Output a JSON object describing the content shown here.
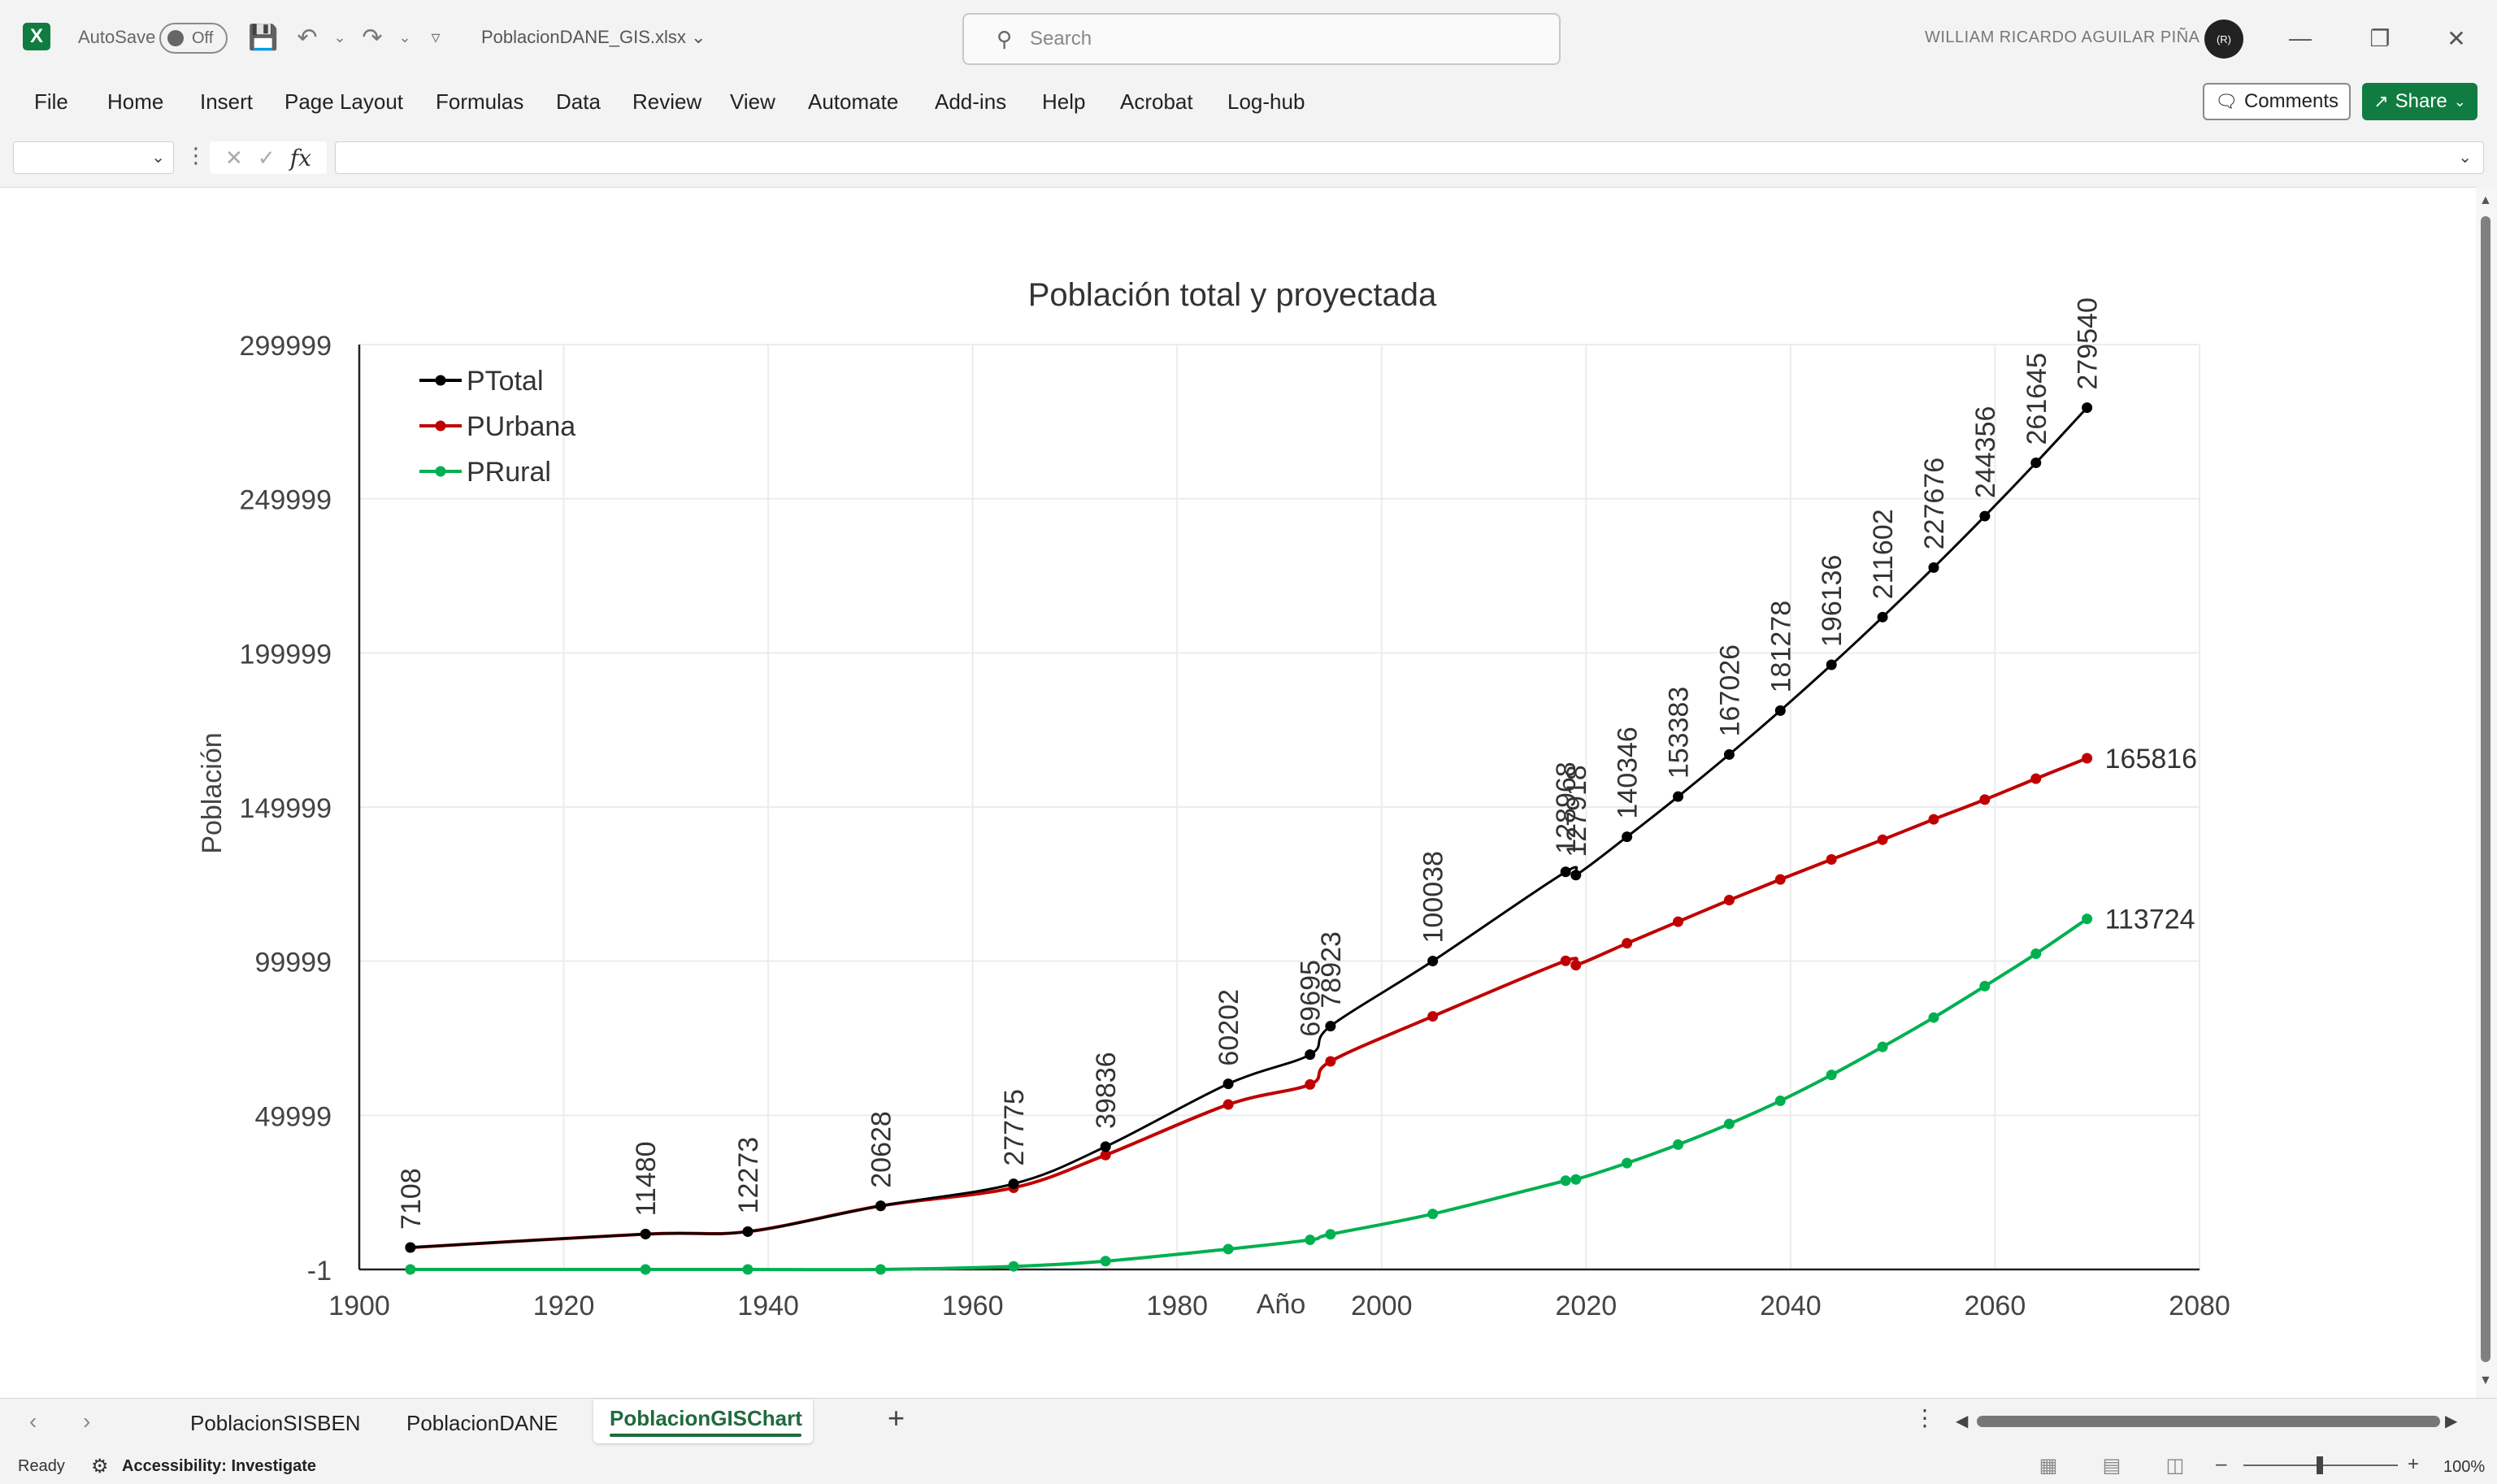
{
  "titlebar": {
    "autosave_label": "AutoSave",
    "autosave_state": "Off",
    "filename": "PoblacionDANE_GIS.xlsx",
    "search_placeholder": "Search",
    "username": "WILLIAM RICARDO AGUILAR PIÑA",
    "avatar_initials": "(R)"
  },
  "ribbon": {
    "tabs": [
      "File",
      "Home",
      "Insert",
      "Page Layout",
      "Formulas",
      "Data",
      "Review",
      "View",
      "Automate",
      "Add-ins",
      "Help",
      "Acrobat",
      "Log-hub"
    ],
    "comments_label": "Comments",
    "share_label": "Share"
  },
  "formula_bar": {
    "name_box": "",
    "formula": "",
    "fx": "fx"
  },
  "sheet_tabs": {
    "tabs": [
      "PoblacionSISBEN",
      "PoblacionDANE"
    ],
    "active": "PoblacionGISChart"
  },
  "statusbar": {
    "ready": "Ready",
    "accessibility": "Accessibility: Investigate",
    "zoom": "100%"
  },
  "colors": {
    "excel_green": "#107c41",
    "ptotal": "#000000",
    "purbana": "#c00000",
    "prural": "#00b050"
  },
  "chart_data": {
    "type": "scatter",
    "title": "Población  total y proyectada",
    "xlabel": "Año",
    "ylabel": "Población",
    "xlim": [
      1900,
      2080
    ],
    "ylim": [
      -1,
      299999
    ],
    "x_ticks": [
      "1900",
      "1920",
      "1940",
      "1960",
      "1980",
      "2000",
      "2020",
      "2040",
      "2060",
      "2080"
    ],
    "y_ticks": [
      "-1",
      "49999",
      "99999",
      "149999",
      "199999",
      "249999",
      "299999"
    ],
    "grid": true,
    "legend_position": "top-left",
    "series": [
      {
        "name": "PTotal",
        "color": "#000000",
        "x": [
          1905,
          1928,
          1938,
          1951,
          1964,
          1973,
          1985,
          1993,
          1995,
          2005,
          2018,
          2019,
          2024,
          2029,
          2034,
          2039,
          2044,
          2049,
          2054,
          2059,
          2064,
          2069
        ],
        "y": [
          7108,
          11480,
          12273,
          20628,
          27775,
          39836,
          60202,
          69695,
          78923,
          100038,
          128968,
          127918,
          140346,
          153383,
          167026,
          181278,
          196136,
          211602,
          227676,
          244356,
          261645,
          279540
        ],
        "labels": [
          "7108",
          "11480",
          "12273",
          "20628",
          "27775",
          "39836",
          "60202",
          "69695",
          "78923",
          "100038",
          "128968",
          "127918",
          "140346",
          "153383",
          "167026",
          "181278",
          "196136",
          "211602",
          "227676",
          "244356",
          "261645",
          "279540"
        ]
      },
      {
        "name": "PUrbana",
        "color": "#c00000",
        "x": [
          1905,
          1928,
          1938,
          1951,
          1964,
          1973,
          1985,
          1993,
          1995,
          2005,
          2018,
          2019,
          2024,
          2029,
          2034,
          2039,
          2044,
          2049,
          2054,
          2059,
          2064,
          2069
        ],
        "y": [
          7108,
          11480,
          12273,
          20628,
          26500,
          37100,
          53500,
          60000,
          67500,
          82100,
          100100,
          98700,
          105800,
          112800,
          119800,
          126500,
          133000,
          139400,
          146000,
          152400,
          159200,
          165816
        ],
        "end_label": "165816"
      },
      {
        "name": "PRural",
        "color": "#00b050",
        "x": [
          1905,
          1928,
          1938,
          1951,
          1964,
          1973,
          1985,
          1993,
          1995,
          2005,
          2018,
          2019,
          2024,
          2029,
          2034,
          2039,
          2044,
          2049,
          2054,
          2059,
          2064,
          2069
        ],
        "y": [
          0,
          0,
          0,
          0,
          1000,
          2700,
          6600,
          9600,
          11400,
          18000,
          28800,
          29200,
          34500,
          40500,
          47200,
          54700,
          63100,
          72200,
          81700,
          91900,
          102400,
          113724
        ],
        "end_label": "113724"
      }
    ]
  }
}
